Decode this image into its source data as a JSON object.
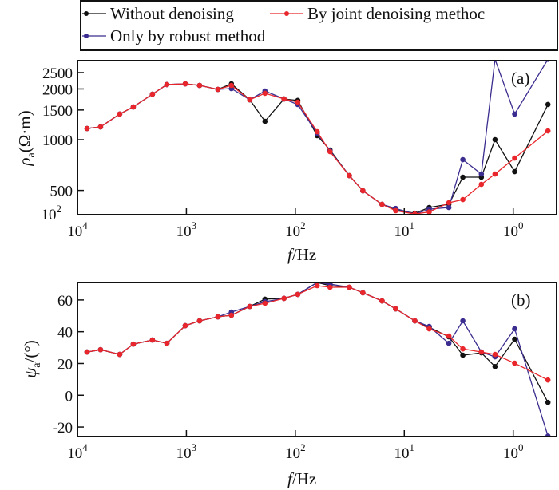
{
  "chart_data": [
    {
      "panel": "(a)",
      "type": "line",
      "x_scale": "log",
      "x_reversed": true,
      "y_scale": "log",
      "xlabel_italic": "f",
      "xlabel_rest": "/Hz",
      "ylabel_symbol": "ρ",
      "ylabel_sub": "a",
      "ylabel_rest": "(Ω·m)",
      "xlim": [
        10000,
        0.4
      ],
      "ylim": [
        359,
        2944
      ],
      "x_ticks": [
        {
          "value": 10000,
          "base": "10",
          "exp": "4"
        },
        {
          "value": 1000,
          "base": "10",
          "exp": "3"
        },
        {
          "value": 100,
          "base": "10",
          "exp": "2"
        },
        {
          "value": 10,
          "base": "10",
          "exp": "1"
        },
        {
          "value": 1,
          "base": "10",
          "exp": "0"
        }
      ],
      "y_ticks": [
        {
          "value": 2500,
          "label": "2500"
        },
        {
          "value": 2000,
          "label": "2000"
        },
        {
          "value": 1500,
          "label": "1500"
        },
        {
          "value": 1000,
          "label": "1000"
        },
        {
          "value": 500,
          "label": "500"
        }
      ],
      "y_bottom_label": {
        "base": "10",
        "exp": "2"
      },
      "x": [
        8166,
        6140,
        4094,
        3073,
        2049,
        1511,
        1025,
        757,
        514,
        386,
        262,
        190,
        127,
        95,
        63,
        48,
        32,
        24,
        16,
        12,
        8,
        5.9,
        3.9,
        2.9,
        1.96,
        1.47,
        0.97,
        0.48
      ],
      "series": [
        {
          "name": "Without denoising",
          "color": "#111111",
          "values": [
            1165,
            1191,
            1419,
            1564,
            1862,
            2124,
            2147,
            2100,
            1989,
            2147,
            1726,
            1285,
            1745,
            1710,
            1056,
            868,
            612,
            498,
            413,
            382,
            366,
            396,
            414,
            599,
            599,
            1000,
            646,
            1618
          ]
        },
        {
          "name": "Only by robust method",
          "color": "#3b2d8f",
          "values": [
            1165,
            1191,
            1419,
            1564,
            1862,
            2124,
            2147,
            2100,
            1989,
            2010,
            1726,
            1946,
            1745,
            1617,
            1091,
            858,
            612,
            498,
            413,
            391,
            362,
            387,
            396,
            762,
            625,
            3000,
            1419,
            3000
          ]
        },
        {
          "name": "By joint denoising methoc",
          "color": "#e8262b",
          "values": [
            1165,
            1191,
            1419,
            1564,
            1862,
            2124,
            2147,
            2100,
            1989,
            2100,
            1726,
            1884,
            1745,
            1670,
            1115,
            849,
            612,
            498,
            413,
            379,
            362,
            373,
            423,
            441,
            543,
            625,
            778,
            1127
          ]
        }
      ]
    },
    {
      "panel": "(b)",
      "type": "line",
      "x_scale": "log",
      "x_reversed": true,
      "y_scale": "linear",
      "xlabel_italic": "f",
      "xlabel_rest": "/Hz",
      "ylabel_symbol": "ψ",
      "ylabel_sub": "a",
      "ylabel_rest": "/(°)",
      "xlim": [
        10000,
        0.4
      ],
      "ylim": [
        -26,
        71
      ],
      "x_ticks": [
        {
          "value": 10000,
          "base": "10",
          "exp": "4"
        },
        {
          "value": 1000,
          "base": "10",
          "exp": "3"
        },
        {
          "value": 100,
          "base": "10",
          "exp": "2"
        },
        {
          "value": 10,
          "base": "10",
          "exp": "1"
        },
        {
          "value": 1,
          "base": "10",
          "exp": "0"
        }
      ],
      "y_ticks": [
        {
          "value": 60,
          "label": "60"
        },
        {
          "value": 40,
          "label": "40"
        },
        {
          "value": 20,
          "label": "20"
        },
        {
          "value": 0,
          "label": "0"
        },
        {
          "value": -20,
          "label": "-20"
        }
      ],
      "x": [
        8166,
        6140,
        4094,
        3073,
        2049,
        1511,
        1025,
        757,
        514,
        386,
        262,
        190,
        127,
        95,
        63,
        48,
        32,
        24,
        16,
        12,
        8,
        5.9,
        3.9,
        2.9,
        1.96,
        1.47,
        0.97,
        0.48
      ],
      "series": [
        {
          "name": "Without denoising",
          "color": "#111111",
          "values": [
            27.2,
            28.7,
            25.7,
            32.2,
            34.8,
            32.7,
            43.8,
            46.9,
            49.4,
            50.4,
            55.9,
            60.5,
            61.0,
            63.5,
            71.0,
            69.0,
            68.0,
            64.5,
            59.4,
            54.4,
            46.9,
            42.8,
            36.8,
            25.2,
            26.7,
            18.1,
            35.3,
            -4.5
          ]
        },
        {
          "name": "Only by robust method",
          "color": "#3b2d8f",
          "values": [
            27.2,
            28.7,
            25.7,
            32.2,
            34.8,
            32.7,
            43.8,
            46.9,
            49.4,
            52.4,
            55.9,
            58.9,
            61.0,
            63.5,
            71.0,
            70.0,
            68.0,
            64.5,
            59.4,
            54.4,
            46.9,
            43.3,
            32.7,
            46.9,
            27.2,
            24.2,
            41.8,
            -25.7
          ]
        },
        {
          "name": "By joint denoising methoc",
          "color": "#e8262b",
          "values": [
            27.2,
            28.7,
            25.7,
            32.2,
            34.8,
            32.7,
            43.8,
            46.9,
            49.4,
            50.4,
            55.9,
            57.9,
            61.0,
            63.5,
            69.0,
            68.0,
            68.0,
            64.5,
            59.4,
            54.4,
            46.9,
            41.8,
            37.3,
            29.2,
            27.2,
            25.7,
            20.2,
            9.6
          ]
        }
      ]
    }
  ],
  "legend": {
    "placement": "top",
    "entries": [
      {
        "label": "Without denoising",
        "color": "#111111"
      },
      {
        "label": "By joint denoising methoc",
        "color": "#e8262b"
      },
      {
        "label": "Only by robust method",
        "color": "#3b2d8f"
      }
    ]
  }
}
